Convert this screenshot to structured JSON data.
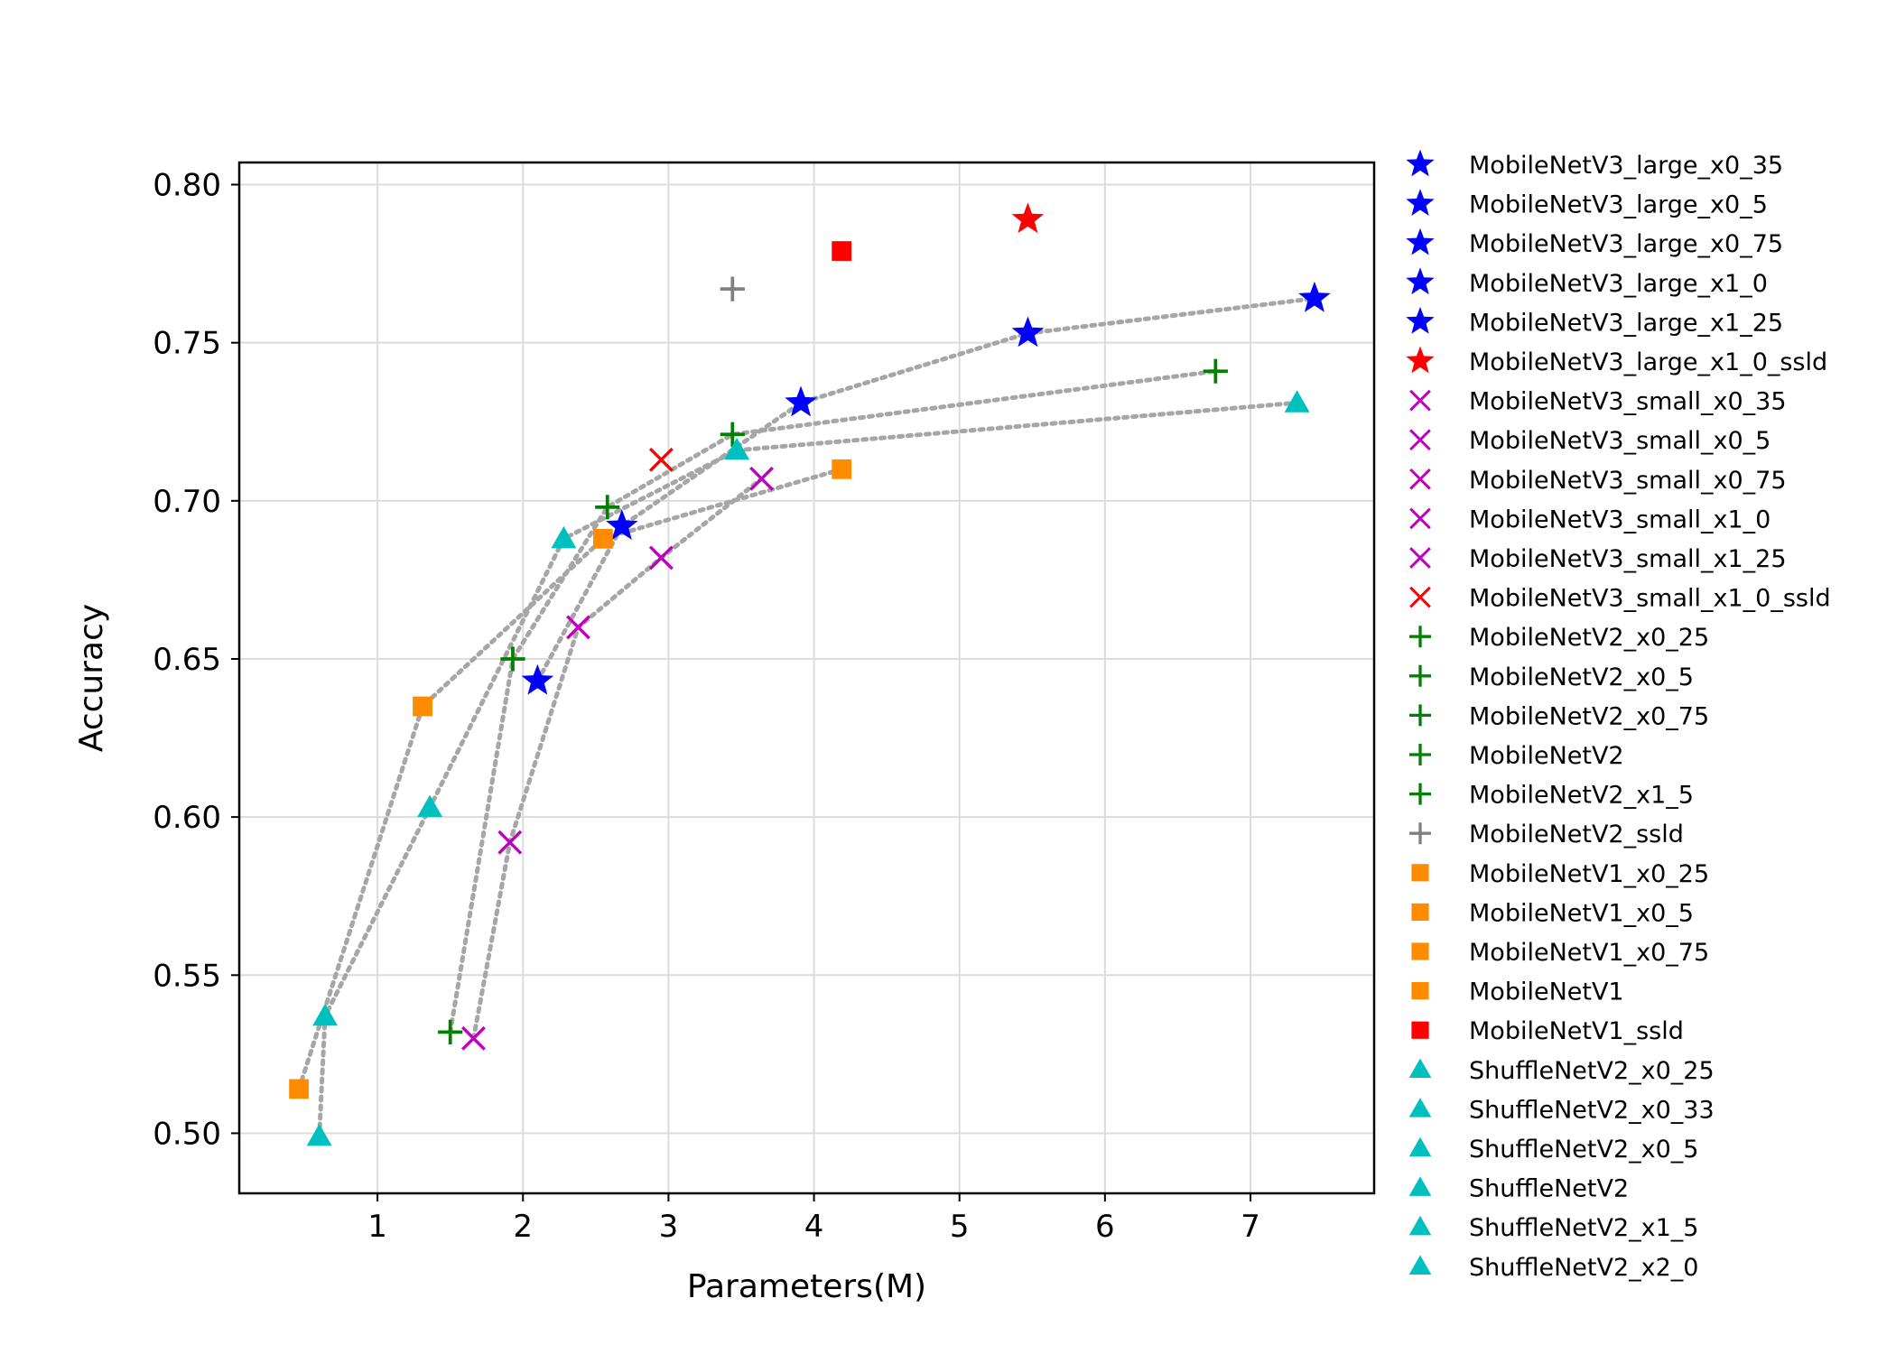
{
  "chart_data": {
    "type": "scatter",
    "xlabel": "Parameters(M)",
    "ylabel": "Accuracy",
    "xlim": [
      0.05,
      7.85
    ],
    "ylim": [
      0.481,
      0.807
    ],
    "xticks": [
      1,
      2,
      3,
      4,
      5,
      6,
      7
    ],
    "xtick_labels": [
      "1",
      "2",
      "3",
      "4",
      "5",
      "6",
      "7"
    ],
    "yticks": [
      0.5,
      0.55,
      0.6,
      0.65,
      0.7,
      0.75,
      0.8
    ],
    "ytick_labels": [
      "0.50",
      "0.55",
      "0.60",
      "0.65",
      "0.70",
      "0.75",
      "0.80"
    ],
    "grid": true,
    "legend_position": "outside-right",
    "connector_color": "#a6a6a6",
    "series": [
      {
        "name": "MobileNetV3_large_x0_35",
        "marker": "star",
        "color": "#0000ff",
        "x": 2.1,
        "y": 0.643
      },
      {
        "name": "MobileNetV3_large_x0_5",
        "marker": "star",
        "color": "#0000ff",
        "x": 2.68,
        "y": 0.692
      },
      {
        "name": "MobileNetV3_large_x0_75",
        "marker": "star",
        "color": "#0000ff",
        "x": 3.91,
        "y": 0.731
      },
      {
        "name": "MobileNetV3_large_x1_0",
        "marker": "star",
        "color": "#0000ff",
        "x": 5.47,
        "y": 0.753
      },
      {
        "name": "MobileNetV3_large_x1_25",
        "marker": "star",
        "color": "#0000ff",
        "x": 7.44,
        "y": 0.764
      },
      {
        "name": "MobileNetV3_large_x1_0_ssld",
        "marker": "star",
        "color": "#ff0000",
        "x": 5.47,
        "y": 0.789
      },
      {
        "name": "MobileNetV3_small_x0_35",
        "marker": "x",
        "color": "#bf00bf",
        "x": 1.66,
        "y": 0.53
      },
      {
        "name": "MobileNetV3_small_x0_5",
        "marker": "x",
        "color": "#bf00bf",
        "x": 1.91,
        "y": 0.592
      },
      {
        "name": "MobileNetV3_small_x0_75",
        "marker": "x",
        "color": "#bf00bf",
        "x": 2.38,
        "y": 0.66
      },
      {
        "name": "MobileNetV3_small_x1_0",
        "marker": "x",
        "color": "#bf00bf",
        "x": 2.95,
        "y": 0.682
      },
      {
        "name": "MobileNetV3_small_x1_25",
        "marker": "x",
        "color": "#bf00bf",
        "x": 3.64,
        "y": 0.707
      },
      {
        "name": "MobileNetV3_small_x1_0_ssld",
        "marker": "x",
        "color": "#ff0000",
        "x": 2.95,
        "y": 0.713
      },
      {
        "name": "MobileNetV2_x0_25",
        "marker": "plus",
        "color": "#008000",
        "x": 1.5,
        "y": 0.532
      },
      {
        "name": "MobileNetV2_x0_5",
        "marker": "plus",
        "color": "#008000",
        "x": 1.93,
        "y": 0.65
      },
      {
        "name": "MobileNetV2_x0_75",
        "marker": "plus",
        "color": "#008000",
        "x": 2.58,
        "y": 0.698
      },
      {
        "name": "MobileNetV2",
        "marker": "plus",
        "color": "#008000",
        "x": 3.44,
        "y": 0.721
      },
      {
        "name": "MobileNetV2_x1_5",
        "marker": "plus",
        "color": "#008000",
        "x": 6.76,
        "y": 0.741
      },
      {
        "name": "MobileNetV2_ssld",
        "marker": "plus",
        "color": "#808080",
        "x": 3.44,
        "y": 0.767
      },
      {
        "name": "MobileNetV1_x0_25",
        "marker": "square",
        "color": "#ff8c00",
        "x": 0.46,
        "y": 0.514
      },
      {
        "name": "MobileNetV1_x0_5",
        "marker": "square",
        "color": "#ff8c00",
        "x": 1.31,
        "y": 0.635
      },
      {
        "name": "MobileNetV1_x0_75",
        "marker": "square",
        "color": "#ff8c00",
        "x": 2.55,
        "y": 0.688
      },
      {
        "name": "MobileNetV1",
        "marker": "square",
        "color": "#ff8c00",
        "x": 4.19,
        "y": 0.71
      },
      {
        "name": "MobileNetV1_ssld",
        "marker": "square",
        "color": "#ff0000",
        "x": 4.19,
        "y": 0.779
      },
      {
        "name": "ShuffleNetV2_x0_25",
        "marker": "triangle",
        "color": "#00bfbf",
        "x": 0.6,
        "y": 0.499
      },
      {
        "name": "ShuffleNetV2_x0_33",
        "marker": "triangle",
        "color": "#00bfbf",
        "x": 0.64,
        "y": 0.537
      },
      {
        "name": "ShuffleNetV2_x0_5",
        "marker": "triangle",
        "color": "#00bfbf",
        "x": 1.36,
        "y": 0.603
      },
      {
        "name": "ShuffleNetV2",
        "marker": "triangle",
        "color": "#00bfbf",
        "x": 2.28,
        "y": 0.688
      },
      {
        "name": "ShuffleNetV2_x1_5",
        "marker": "triangle",
        "color": "#00bfbf",
        "x": 3.47,
        "y": 0.716
      },
      {
        "name": "ShuffleNetV2_x2_0",
        "marker": "triangle",
        "color": "#00bfbf",
        "x": 7.32,
        "y": 0.731
      }
    ],
    "connector_groups": [
      [
        "MobileNetV3_large_x0_35",
        "MobileNetV3_large_x0_5",
        "MobileNetV3_large_x0_75",
        "MobileNetV3_large_x1_0",
        "MobileNetV3_large_x1_25"
      ],
      [
        "MobileNetV3_small_x0_35",
        "MobileNetV3_small_x0_5",
        "MobileNetV3_small_x0_75",
        "MobileNetV3_small_x1_0",
        "MobileNetV3_small_x1_25"
      ],
      [
        "MobileNetV2_x0_25",
        "MobileNetV2_x0_5",
        "MobileNetV2_x0_75",
        "MobileNetV2",
        "MobileNetV2_x1_5"
      ],
      [
        "MobileNetV1_x0_25",
        "MobileNetV1_x0_5",
        "MobileNetV1_x0_75",
        "MobileNetV1"
      ],
      [
        "ShuffleNetV2_x0_25",
        "ShuffleNetV2_x0_33",
        "ShuffleNetV2_x0_5",
        "ShuffleNetV2",
        "ShuffleNetV2_x1_5",
        "ShuffleNetV2_x2_0"
      ]
    ]
  }
}
